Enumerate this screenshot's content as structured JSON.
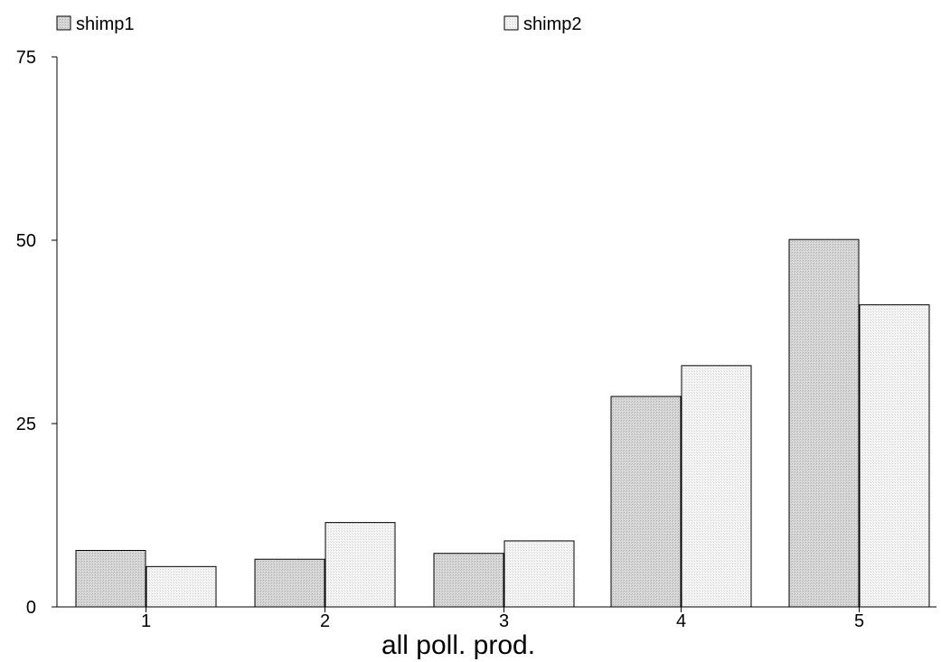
{
  "chart_data": {
    "type": "bar",
    "title": "",
    "xlabel": "all poll. prod.",
    "ylabel": "",
    "categories": [
      "1",
      "2",
      "3",
      "4",
      "5"
    ],
    "series": [
      {
        "name": "shimp1",
        "values": [
          7.7,
          6.5,
          7.3,
          28.7,
          50.1
        ],
        "fill": "#d4d4d4",
        "pattern": "dense-dots"
      },
      {
        "name": "shimp2",
        "values": [
          5.5,
          11.5,
          9.0,
          32.9,
          41.2
        ],
        "fill": "#f0f0f0",
        "pattern": "light-dots"
      }
    ],
    "ylim": [
      0,
      75
    ],
    "yticks": [
      0,
      25,
      50,
      75
    ],
    "grid": false,
    "legend_position": "top"
  }
}
